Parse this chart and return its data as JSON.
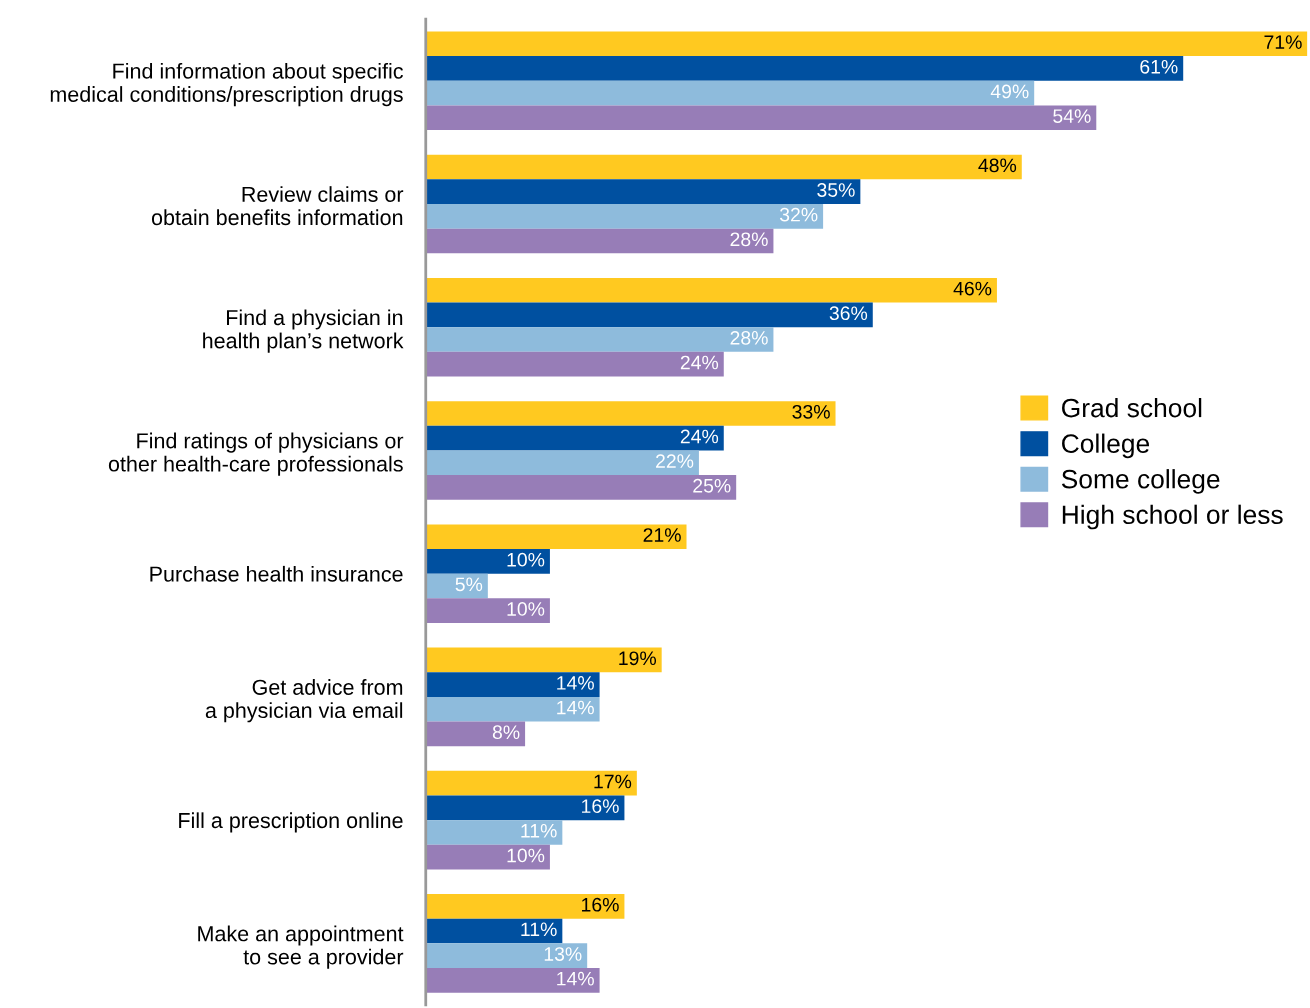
{
  "chart_data": {
    "type": "bar",
    "orientation": "horizontal",
    "categories": [
      "Find information about specific\nmedical conditions/prescription drugs",
      "Review claims or\nobtain benefits information",
      "Find a physician in\nhealth plan’s network",
      "Find ratings of physicians or\nother health-care professionals",
      "Purchase health insurance",
      "Get advice from\na physician via email",
      "Fill a prescription online",
      "Make an appointment\nto see a provider"
    ],
    "series": [
      {
        "name": "Grad school",
        "color": "#ffc920",
        "values": [
          71,
          48,
          46,
          33,
          21,
          19,
          17,
          16
        ],
        "value_labels": [
          "71%",
          "48%",
          "46%",
          "33%",
          "21%",
          "19%",
          "17%",
          "16%"
        ]
      },
      {
        "name": "College",
        "color": "#0050a0",
        "values": [
          61,
          35,
          36,
          24,
          10,
          14,
          16,
          11
        ],
        "value_labels": [
          "61%",
          "35%",
          "36%",
          "24%",
          "10%",
          "14%",
          "16%",
          "11%"
        ]
      },
      {
        "name": "Some college",
        "color": "#8ebbdc",
        "values": [
          49,
          32,
          28,
          22,
          5,
          14,
          11,
          13
        ],
        "value_labels": [
          "49%",
          "32%",
          "28%",
          "22%",
          "5%",
          "14%",
          "11%",
          "13%"
        ]
      },
      {
        "name": "High school or less",
        "color": "#977db7",
        "values": [
          54,
          28,
          24,
          25,
          10,
          8,
          10,
          14
        ],
        "value_labels": [
          "54%",
          "28%",
          "24%",
          "25%",
          "10%",
          "8%",
          "10%",
          "14%"
        ]
      }
    ],
    "xlim": [
      0,
      71
    ],
    "tick_labels": "y",
    "legend": "center right",
    "grid": false
  }
}
